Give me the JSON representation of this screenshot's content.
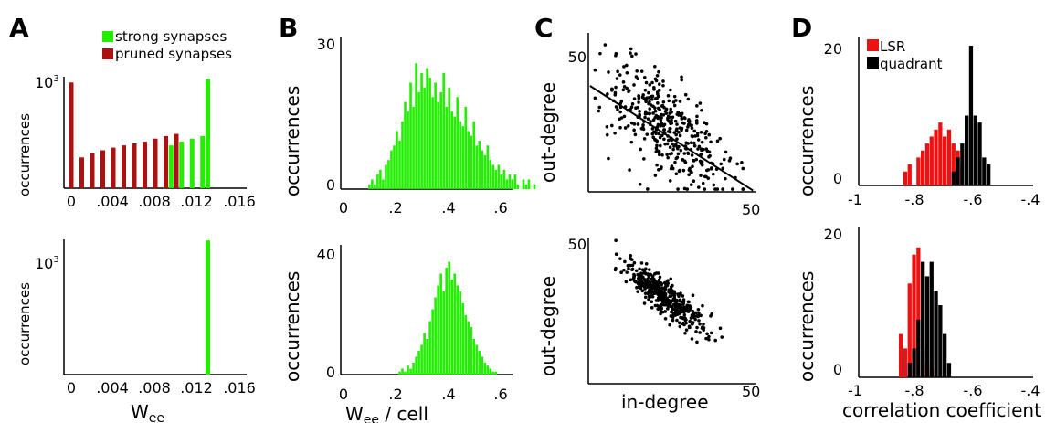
{
  "colors": {
    "green": "#22ee00",
    "red": "#ee1111",
    "darkred": "#aa1111",
    "black": "#000000"
  },
  "panels": {
    "A": {
      "letter": "A",
      "ylabel": "occurrences",
      "xlabel_main": "W",
      "xlabel_sub": "ee",
      "ytick": "10",
      "ytick_exp": "3",
      "xticks": [
        "0",
        ".004",
        ".008",
        ".012",
        ".016"
      ],
      "legend": [
        {
          "label": "strong synapses",
          "color": "#22ee00"
        },
        {
          "label": "pruned synapses",
          "color": "#aa1111"
        }
      ]
    },
    "B": {
      "letter": "B",
      "ylabel": "occurrences",
      "xlabel_main": "W",
      "xlabel_sub": "ee",
      "xlabel_rest": " / cell",
      "xticks": [
        "0",
        ".2",
        ".4",
        ".6"
      ],
      "top_yticks": [
        "0",
        "30"
      ],
      "bottom_yticks": [
        "0",
        "40"
      ]
    },
    "C": {
      "letter": "C",
      "ylabel": "out-degree",
      "xlabel": "in-degree",
      "ytick": "50",
      "xtick": "50"
    },
    "D": {
      "letter": "D",
      "ylabel": "occurrences",
      "xlabel": "correlation coefficient",
      "xticks": [
        "-1",
        "-.8",
        "-.6",
        "-.4"
      ],
      "yticks": [
        "0",
        "20"
      ],
      "legend": [
        {
          "label": "LSR",
          "color": "#ee1111"
        },
        {
          "label": "quadrant",
          "color": "#000000"
        }
      ]
    }
  },
  "chart_data": [
    {
      "type": "bar",
      "panel": "A-top",
      "xlabel": "Wee",
      "ylabel": "occurrences",
      "xlim": [
        0,
        0.016
      ],
      "series": [
        {
          "name": "pruned synapses",
          "color": "#aa1111",
          "x": [
            0.0,
            0.001,
            0.002,
            0.003,
            0.004,
            0.005,
            0.006,
            0.007,
            0.008,
            0.009,
            0.01
          ],
          "values": [
            800,
            6,
            8,
            10,
            12,
            14,
            16,
            18,
            22,
            26,
            30
          ]
        },
        {
          "name": "strong synapses",
          "color": "#22ee00",
          "x": [
            0.0095,
            0.0105,
            0.0115,
            0.0125,
            0.013
          ],
          "values": [
            14,
            18,
            22,
            26,
            1000
          ]
        }
      ]
    },
    {
      "type": "bar",
      "panel": "A-bottom",
      "xlabel": "Wee",
      "ylabel": "occurrences",
      "xlim": [
        0,
        0.016
      ],
      "series": [
        {
          "name": "strong synapses",
          "color": "#22ee00",
          "x": [
            0.013
          ],
          "values": [
            1180
          ]
        }
      ]
    },
    {
      "type": "bar",
      "panel": "B-top",
      "xlabel": "Wee / cell",
      "ylabel": "occurrences",
      "xlim": [
        0,
        0.72
      ],
      "ylim": [
        0,
        30
      ],
      "bin_start": 0.0,
      "bin_width": 0.0105,
      "values": [
        0,
        0,
        0,
        0,
        0,
        0,
        0,
        0,
        0,
        1,
        2,
        1,
        3,
        4,
        2,
        5,
        6,
        8,
        9,
        12,
        10,
        14,
        18,
        16,
        22,
        17,
        26,
        20,
        24,
        21,
        25,
        23,
        19,
        22,
        18,
        20,
        24,
        17,
        21,
        16,
        15,
        19,
        14,
        13,
        17,
        12,
        11,
        14,
        9,
        10,
        8,
        7,
        9,
        6,
        5,
        4,
        5,
        3,
        4,
        2,
        3,
        2,
        3,
        1,
        0,
        2,
        1,
        2,
        0,
        1
      ]
    },
    {
      "type": "bar",
      "panel": "B-bottom",
      "xlabel": "Wee / cell",
      "ylabel": "occurrences",
      "xlim": [
        0,
        0.72
      ],
      "ylim": [
        0,
        40
      ],
      "bin_start": 0.0,
      "bin_width": 0.0105,
      "values": [
        0,
        0,
        0,
        0,
        0,
        0,
        0,
        0,
        0,
        0,
        0,
        0,
        0,
        0,
        0,
        0,
        0,
        0,
        0,
        0,
        1,
        2,
        1,
        3,
        2,
        4,
        6,
        8,
        10,
        14,
        12,
        18,
        22,
        26,
        30,
        34,
        28,
        36,
        38,
        32,
        34,
        30,
        28,
        24,
        20,
        18,
        16,
        12,
        10,
        8,
        6,
        4,
        3,
        2,
        1,
        1,
        0,
        0,
        0,
        0,
        0,
        0,
        0,
        0,
        0,
        0,
        0,
        0,
        0,
        0
      ]
    },
    {
      "type": "scatter",
      "panel": "C-top",
      "xlabel": "in-degree",
      "ylabel": "out-degree",
      "xlim": [
        0,
        50
      ],
      "ylim": [
        0,
        60
      ],
      "n_points": 400,
      "fit_line": {
        "x": [
          0,
          50
        ],
        "y": [
          40,
          0
        ]
      },
      "distribution": {
        "x_mean": 23,
        "x_sd": 9,
        "y_slope": -0.8,
        "y_intercept": 43,
        "y_noise_sd": 9
      }
    },
    {
      "type": "scatter",
      "panel": "C-bottom",
      "xlabel": "in-degree",
      "ylabel": "out-degree",
      "xlim": [
        0,
        50
      ],
      "ylim": [
        0,
        50
      ],
      "n_points": 450,
      "distribution": {
        "x_mean": 22,
        "x_sd": 6,
        "y_slope": -0.85,
        "y_intercept": 49,
        "y_noise_sd": 3
      }
    },
    {
      "type": "bar",
      "panel": "D-top",
      "xlabel": "correlation coefficient",
      "ylabel": "occurrences",
      "xlim": [
        -1,
        -0.4
      ],
      "ylim": [
        0,
        20
      ],
      "bin_width": 0.015,
      "series": [
        {
          "name": "LSR",
          "color": "#ee1111",
          "x": [
            -0.835,
            -0.82,
            -0.805,
            -0.79,
            -0.775,
            -0.76,
            -0.745,
            -0.73,
            -0.715,
            -0.7,
            -0.685,
            -0.67,
            -0.655,
            -0.64
          ],
          "values": [
            2,
            3,
            0,
            4,
            5,
            6,
            7,
            8,
            9,
            7,
            8,
            6,
            5,
            3
          ]
        },
        {
          "name": "quadrant",
          "color": "#000000",
          "x": [
            -0.67,
            -0.655,
            -0.64,
            -0.625,
            -0.61,
            -0.595,
            -0.58,
            -0.565,
            -0.55
          ],
          "values": [
            2,
            4,
            6,
            10,
            20,
            10,
            9,
            4,
            3
          ]
        }
      ]
    },
    {
      "type": "bar",
      "panel": "D-bottom",
      "xlabel": "correlation coefficient",
      "ylabel": "occurrences",
      "xlim": [
        -1,
        -0.4
      ],
      "ylim": [
        0,
        20
      ],
      "bin_width": 0.015,
      "series": [
        {
          "name": "LSR",
          "color": "#ee1111",
          "x": [
            -0.85,
            -0.835,
            -0.82,
            -0.805,
            -0.79,
            -0.775,
            -0.76,
            -0.745
          ],
          "values": [
            6,
            4,
            13,
            17,
            18,
            4,
            2,
            1
          ]
        },
        {
          "name": "quadrant",
          "color": "#000000",
          "x": [
            -0.82,
            -0.805,
            -0.79,
            -0.775,
            -0.76,
            -0.745,
            -0.73,
            -0.715,
            -0.7,
            -0.685
          ],
          "values": [
            2,
            4,
            8,
            16,
            14,
            16,
            12,
            10,
            6,
            2
          ]
        }
      ]
    }
  ]
}
